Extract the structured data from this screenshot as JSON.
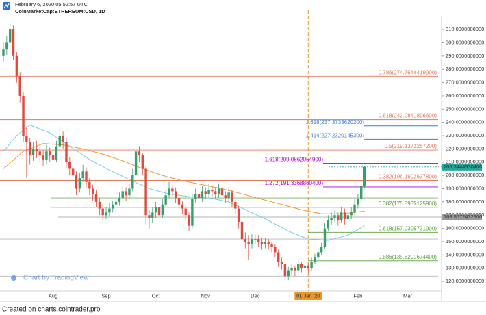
{
  "header": {
    "timestamp": "February 6, 2020 05:52:57 UTC",
    "symbol": "CoinMarketCap:ETHEREUM:USD, 1D"
  },
  "footer": "Created on charts.cointrader.pro",
  "watermark": "Chart by TradingView",
  "chart_data": {
    "type": "candlestick",
    "categories": [
      null,
      null,
      null,
      null,
      null,
      null,
      null,
      null,
      null,
      null,
      null,
      null,
      null,
      null,
      null,
      "Aug",
      null,
      null,
      null,
      null,
      null,
      null,
      null,
      null,
      null,
      null,
      null,
      null,
      null,
      null,
      null,
      "Sep",
      null,
      null,
      null,
      null,
      null,
      null,
      null,
      null,
      null,
      null,
      null,
      null,
      null,
      null,
      "Oct",
      null,
      null,
      null,
      null,
      null,
      null,
      null,
      null,
      null,
      null,
      null,
      null,
      null,
      null,
      "Nov",
      null,
      null,
      null,
      null,
      null,
      null,
      null,
      null,
      null,
      null,
      null,
      null,
      null,
      null,
      "Dec",
      null,
      null,
      null,
      null,
      null,
      null,
      null,
      null,
      null,
      null,
      null,
      null,
      null,
      null,
      null,
      "01 Jan '20",
      null,
      null,
      null,
      null,
      null,
      null,
      null,
      null,
      null,
      null,
      null,
      null,
      null,
      null,
      "Feb",
      null,
      null,
      null,
      null,
      null,
      null,
      null,
      null,
      null,
      null,
      null,
      null,
      null,
      null,
      "Mar"
    ],
    "open": [
      290,
      295,
      300,
      310,
      290,
      275,
      260,
      230,
      225,
      215,
      220,
      218,
      215,
      212,
      218,
      215,
      212,
      222,
      230,
      225,
      210,
      205,
      200,
      190,
      198,
      203,
      195,
      190,
      186,
      180,
      175,
      170,
      172,
      175,
      178,
      180,
      183,
      188,
      185,
      190,
      200,
      218,
      215,
      205,
      170,
      168,
      172,
      176,
      170,
      178,
      185,
      190,
      188,
      183,
      178,
      175,
      170,
      162,
      182,
      186,
      183,
      188,
      186,
      189,
      188,
      186,
      190,
      185,
      183,
      187,
      180,
      175,
      165,
      152,
      150,
      148,
      152,
      152,
      150,
      148,
      150,
      148,
      146,
      142,
      135,
      133,
      124,
      128,
      130,
      128,
      133,
      130,
      132,
      130,
      135,
      138,
      142,
      146,
      160,
      166,
      168,
      170,
      166,
      172,
      167,
      170,
      172,
      178,
      182,
      192,
      null,
      null,
      null,
      null,
      null,
      null,
      null,
      null,
      null,
      null,
      null,
      null,
      null
    ],
    "high": [
      300,
      305,
      316,
      313,
      293,
      278,
      263,
      236,
      228,
      225,
      226,
      222,
      219,
      223,
      221,
      218,
      226,
      237,
      233,
      228,
      214,
      208,
      203,
      202,
      208,
      206,
      198,
      193,
      189,
      183,
      178,
      176,
      179,
      181,
      184,
      187,
      192,
      191,
      194,
      205,
      223,
      222,
      217,
      207,
      174,
      176,
      180,
      179,
      182,
      189,
      195,
      193,
      191,
      186,
      181,
      178,
      172,
      186,
      190,
      189,
      192,
      191,
      194,
      192,
      191,
      194,
      192,
      188,
      191,
      189,
      182,
      177,
      167,
      157,
      155,
      156,
      156,
      155,
      153,
      153,
      152,
      150,
      148,
      144,
      138,
      135,
      131,
      133,
      132,
      136,
      135,
      135,
      134,
      138,
      141,
      145,
      149,
      164,
      170,
      172,
      174,
      172,
      176,
      175,
      174,
      176,
      182,
      186,
      195,
      207,
      null,
      null,
      null,
      null,
      null,
      null,
      null,
      null,
      null,
      null,
      null,
      null,
      null
    ],
    "low": [
      286,
      291,
      297,
      287,
      270,
      255,
      225,
      198,
      208,
      211,
      213,
      210,
      207,
      209,
      210,
      207,
      210,
      219,
      220,
      206,
      200,
      194,
      185,
      187,
      195,
      191,
      185,
      181,
      176,
      170,
      166,
      167,
      169,
      172,
      175,
      177,
      180,
      181,
      182,
      188,
      198,
      210,
      200,
      163,
      160,
      164,
      168,
      166,
      168,
      176,
      183,
      184,
      179,
      174,
      171,
      166,
      158,
      160,
      179,
      179,
      180,
      182,
      183,
      184,
      182,
      183,
      181,
      179,
      180,
      176,
      171,
      160,
      147,
      145,
      136,
      145,
      148,
      146,
      144,
      145,
      144,
      142,
      138,
      131,
      129,
      118,
      121,
      125,
      124,
      126,
      127,
      128,
      126,
      128,
      133,
      136,
      140,
      145,
      158,
      163,
      165,
      162,
      164,
      163,
      165,
      167,
      170,
      175,
      180,
      190,
      null,
      null,
      null,
      null,
      null,
      null,
      null,
      null,
      null,
      null,
      null,
      null,
      null
    ],
    "close": [
      295,
      300,
      310,
      290,
      275,
      260,
      230,
      225,
      215,
      220,
      218,
      215,
      212,
      218,
      215,
      212,
      222,
      230,
      225,
      210,
      205,
      200,
      190,
      198,
      203,
      195,
      190,
      186,
      180,
      175,
      170,
      172,
      175,
      178,
      180,
      183,
      188,
      185,
      190,
      200,
      218,
      215,
      205,
      170,
      168,
      172,
      176,
      170,
      178,
      185,
      190,
      188,
      183,
      178,
      175,
      170,
      162,
      182,
      186,
      183,
      188,
      186,
      189,
      188,
      186,
      190,
      185,
      183,
      187,
      180,
      175,
      165,
      152,
      150,
      148,
      152,
      152,
      150,
      148,
      150,
      148,
      146,
      142,
      135,
      133,
      124,
      128,
      130,
      128,
      133,
      130,
      132,
      130,
      135,
      138,
      142,
      146,
      160,
      166,
      168,
      170,
      166,
      172,
      167,
      170,
      172,
      178,
      182,
      192,
      206.34449304,
      null,
      null,
      null,
      null,
      null,
      null,
      null,
      null,
      null,
      null,
      null,
      null,
      null
    ],
    "up_color": "#3a9e6a",
    "down_color": "#e04a3c",
    "moving_averages": [
      {
        "color": "#f0952c",
        "x": [
          0,
          6,
          12,
          18,
          24,
          30,
          36,
          42,
          48,
          54,
          60,
          66,
          72,
          78,
          84,
          90,
          96,
          102,
          109
        ],
        "values": [
          205,
          218,
          224,
          223,
          220,
          216,
          211,
          205,
          200,
          196,
          193,
          190,
          186,
          182,
          178,
          174,
          171,
          171,
          173
        ]
      },
      {
        "color": "#6fd0e8",
        "x": [
          0,
          4,
          8,
          14,
          20,
          26,
          32,
          38,
          44,
          50,
          56,
          62,
          68,
          74,
          80,
          86,
          92,
          98,
          104,
          109
        ],
        "values": [
          218,
          230,
          238,
          232,
          222,
          212,
          204,
          197,
          190,
          186,
          184,
          183,
          180,
          173,
          166,
          158,
          152,
          151,
          155,
          162
        ]
      }
    ],
    "levels": [
      {
        "label": "0.786(274.7544419900)",
        "value": 274.75444199,
        "color": "#e07a5f"
      },
      {
        "label": "0.618(242.0841896600)",
        "value": 242.08418966,
        "color": "#e07a5f"
      },
      {
        "label": "1.618(237.3733620200)",
        "value": 237.37336202,
        "color": "#3f7fd4"
      },
      {
        "label": "1.414(227.2320145300)",
        "value": 227.23201453,
        "color": "#3f7fd4"
      },
      {
        "label": "0.5(219.1372267200)",
        "value": 219.13722672,
        "color": "#e07a5f"
      },
      {
        "label": "1.618(209.0862054900)",
        "value": 209.08620549,
        "color": "#a800e0"
      },
      {
        "label": "0.382(196.1902637800)",
        "value": 196.19026378,
        "color": "#e07a5f"
      },
      {
        "label": "1.272(191.3368860400)",
        "value": 191.33688604,
        "color": "#a800e0"
      },
      {
        "label": "0.382(175.8935125900)",
        "value": 175.89351259,
        "color": "#5a9e3c"
      },
      {
        "label": "0.618(157.0395731900)",
        "value": 157.03957319,
        "color": "#5a9e3c"
      },
      {
        "label": "0.886(135.6291674400)",
        "value": 135.62916744,
        "color": "#5a9e3c"
      }
    ],
    "support_lines": [
      124,
      152,
      183
    ],
    "price_markers": [
      {
        "label": "206.3444930400",
        "value": 206.34449304,
        "color": "#26a69a"
      },
      {
        "label": "168.5572432900",
        "value": 168.55724329,
        "color": "#9a9a9a"
      }
    ],
    "ylim": [
      112.8,
      324.5
    ],
    "yticks": [
      {
        "value": 120,
        "label": "120.0000000000"
      },
      {
        "value": 130,
        "label": "130.0000000000"
      },
      {
        "value": 140,
        "label": "140.0000000000"
      },
      {
        "value": 150,
        "label": "150.0000000000"
      },
      {
        "value": 160,
        "label": "160.0000000000"
      },
      {
        "value": 170,
        "label": "170.0000000000"
      },
      {
        "value": 180,
        "label": "180.0000000000"
      },
      {
        "value": 190,
        "label": "190.0000000000"
      },
      {
        "value": 200,
        "label": "200.0000000000"
      },
      {
        "value": 210,
        "label": "210.0000000000"
      },
      {
        "value": 220,
        "label": "220.0000000000"
      },
      {
        "value": 230,
        "label": "230.0000000000"
      },
      {
        "value": 240,
        "label": "240.0000000000"
      },
      {
        "value": 250,
        "label": "250.0000000000"
      },
      {
        "value": 260,
        "label": "260.0000000000"
      },
      {
        "value": 270,
        "label": "270.0000000000"
      },
      {
        "value": 280,
        "label": "280.0000000000"
      },
      {
        "value": 290,
        "label": "290.0000000000"
      },
      {
        "value": 300,
        "label": "300.0000000000"
      },
      {
        "value": 310,
        "label": "310.0000000000"
      }
    ]
  }
}
